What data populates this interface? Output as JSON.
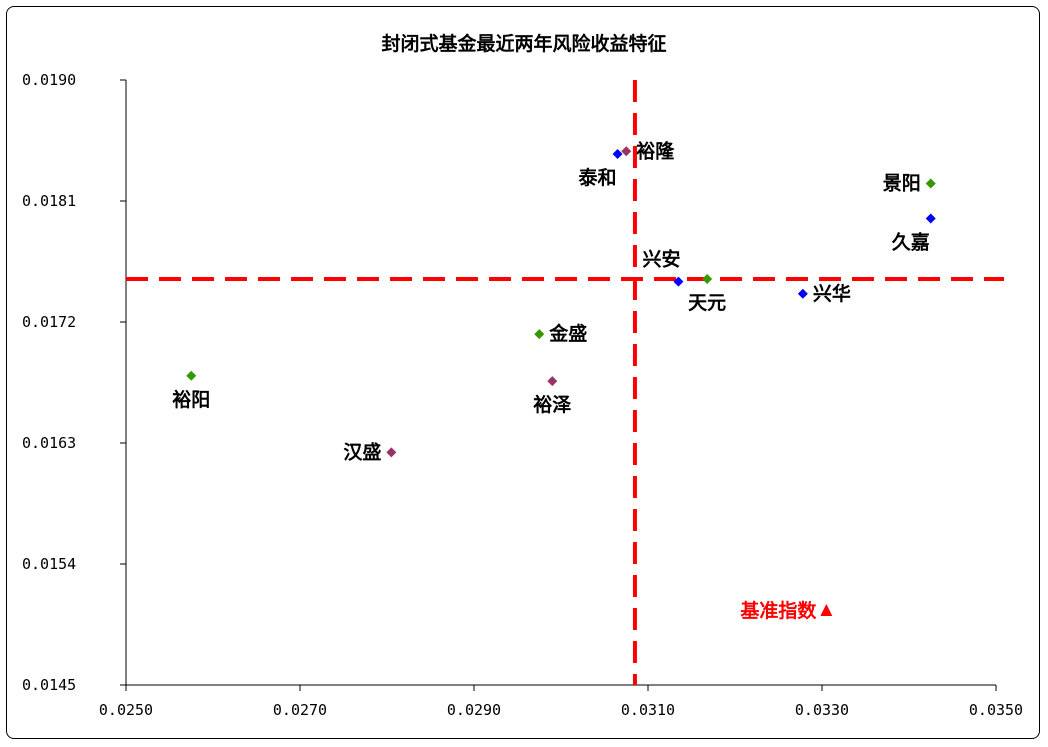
{
  "chart_data": {
    "type": "scatter",
    "title": "封闭式基金最近两年风险收益特征",
    "xlabel": "",
    "ylabel": "",
    "xlim": [
      0.025,
      0.035
    ],
    "ylim": [
      0.0145,
      0.019
    ],
    "x_ticks": [
      "0.0250",
      "0.0270",
      "0.0290",
      "0.0310",
      "0.0330",
      "0.0350"
    ],
    "y_ticks": [
      "0.0190",
      "0.0181",
      "0.0172",
      "0.0163",
      "0.0154",
      "0.0145"
    ],
    "x_tick_values": [
      0.025,
      0.027,
      0.029,
      0.031,
      0.033,
      0.035
    ],
    "y_tick_values": [
      0.019,
      0.0181,
      0.0172,
      0.0163,
      0.0154,
      0.0145
    ],
    "grid": false,
    "reference_lines": {
      "x": 0.03085,
      "y": 0.01752,
      "color": "#ff0000",
      "style": "dashed"
    },
    "points": [
      {
        "label": "裕隆",
        "x": 0.03075,
        "y": 0.01847,
        "color": "#993366",
        "marker": "diamond",
        "label_pos": "right"
      },
      {
        "label": "泰和",
        "x": 0.03065,
        "y": 0.01845,
        "color": "#0000ff",
        "marker": "diamond",
        "label_pos": "below-left"
      },
      {
        "label": "景阳",
        "x": 0.03425,
        "y": 0.01823,
        "color": "#339900",
        "marker": "diamond",
        "label_pos": "left"
      },
      {
        "label": "久嘉",
        "x": 0.03425,
        "y": 0.01797,
        "color": "#0000ff",
        "marker": "diamond",
        "label_pos": "below-left"
      },
      {
        "label": "兴安",
        "x": 0.03135,
        "y": 0.0175,
        "color": "#0000ff",
        "marker": "diamond",
        "label_pos": "above-left"
      },
      {
        "label": "天元",
        "x": 0.03168,
        "y": 0.01752,
        "color": "#339900",
        "marker": "diamond",
        "label_pos": "below"
      },
      {
        "label": "兴华",
        "x": 0.03278,
        "y": 0.01741,
        "color": "#0000ff",
        "marker": "diamond",
        "label_pos": "right"
      },
      {
        "label": "金盛",
        "x": 0.02975,
        "y": 0.01711,
        "color": "#339900",
        "marker": "diamond",
        "label_pos": "right"
      },
      {
        "label": "裕泽",
        "x": 0.0299,
        "y": 0.01676,
        "color": "#993366",
        "marker": "diamond",
        "label_pos": "below"
      },
      {
        "label": "裕阳",
        "x": 0.02575,
        "y": 0.0168,
        "color": "#339900",
        "marker": "diamond",
        "label_pos": "below"
      },
      {
        "label": "汉盛",
        "x": 0.02805,
        "y": 0.01623,
        "color": "#993366",
        "marker": "diamond",
        "label_pos": "left"
      },
      {
        "label": "基准指数",
        "x": 0.03305,
        "y": 0.01505,
        "color": "#ff0000",
        "marker": "triangle",
        "label_pos": "left",
        "label_color": "#ff0000"
      }
    ]
  }
}
